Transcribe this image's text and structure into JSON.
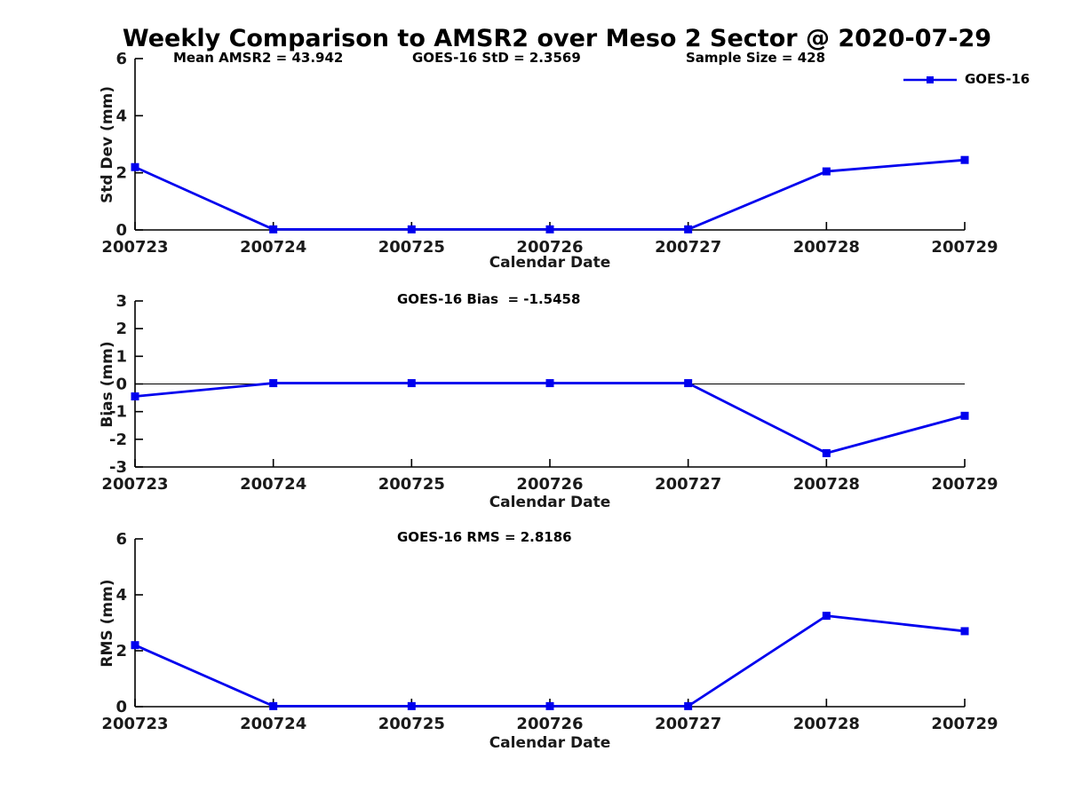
{
  "title": "Weekly Comparison to AMSR2 over Meso 2 Sector @ 2020-07-29",
  "legend": {
    "label": "GOES-16"
  },
  "colors": {
    "series": "#0000EE",
    "axis": "#000000",
    "tick_text": "#1a1a1a",
    "zero_line": "#000000"
  },
  "chart_data": [
    {
      "type": "line",
      "name": "std-dev-plot",
      "ylabel": "Std Dev (mm)",
      "xlabel": "Calendar Date",
      "categories": [
        "200723",
        "200724",
        "200725",
        "200726",
        "200727",
        "200728",
        "200729"
      ],
      "series": [
        {
          "name": "GOES-16",
          "marker": "square",
          "values": [
            2.2,
            0.02,
            0.02,
            0.02,
            0.02,
            2.05,
            2.45
          ]
        }
      ],
      "ylim": [
        0,
        6
      ],
      "yticks": [
        0,
        2,
        4,
        6
      ],
      "grid": false,
      "zero_line": false,
      "legend_position": "top-right",
      "annotations": [
        "Mean AMSR2 = 43.942",
        "GOES-16 StD = 2.3569",
        "Sample Size = 428"
      ]
    },
    {
      "type": "line",
      "name": "bias-plot",
      "ylabel": "Bias (mm)",
      "xlabel": "Calendar Date",
      "categories": [
        "200723",
        "200724",
        "200725",
        "200726",
        "200727",
        "200728",
        "200729"
      ],
      "series": [
        {
          "name": "GOES-16",
          "marker": "square",
          "values": [
            -0.45,
            0.03,
            0.03,
            0.03,
            0.03,
            -2.5,
            -1.15
          ]
        }
      ],
      "ylim": [
        -3,
        3
      ],
      "yticks": [
        -3,
        -2,
        -1,
        0,
        1,
        2,
        3
      ],
      "grid": false,
      "zero_line": true,
      "annotations": [
        "GOES-16 Bias  = -1.5458"
      ]
    },
    {
      "type": "line",
      "name": "rms-plot",
      "ylabel": "RMS (mm)",
      "xlabel": "Calendar Date",
      "categories": [
        "200723",
        "200724",
        "200725",
        "200726",
        "200727",
        "200728",
        "200729"
      ],
      "series": [
        {
          "name": "GOES-16",
          "marker": "square",
          "values": [
            2.2,
            0.02,
            0.02,
            0.02,
            0.02,
            3.25,
            2.7
          ]
        }
      ],
      "ylim": [
        0,
        6
      ],
      "yticks": [
        0,
        2,
        4,
        6
      ],
      "grid": false,
      "zero_line": false,
      "annotations": [
        "GOES-16 RMS = 2.8186"
      ]
    }
  ]
}
